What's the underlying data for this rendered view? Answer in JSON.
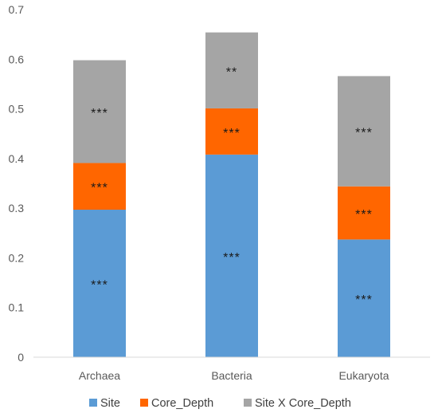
{
  "chart_data": {
    "type": "bar",
    "stacked": true,
    "categories": [
      "Archaea",
      "Bacteria",
      "Eukaryota"
    ],
    "series": [
      {
        "name": "Site",
        "color": "#5b9bd5",
        "values": [
          0.297,
          0.408,
          0.237
        ],
        "annotations": [
          "***",
          "***",
          "***"
        ]
      },
      {
        "name": "Core_Depth",
        "color": "#ff6600",
        "values": [
          0.094,
          0.093,
          0.107
        ],
        "annotations": [
          "***",
          "***",
          "***"
        ]
      },
      {
        "name": "Site X Core_Depth",
        "color": "#a5a5a5",
        "values": [
          0.207,
          0.153,
          0.222
        ],
        "annotations": [
          "***",
          "**",
          "***"
        ]
      }
    ],
    "ylim": [
      0,
      0.7
    ],
    "yticks": [
      "0",
      "0.1",
      "0.2",
      "0.3",
      "0.4",
      "0.5",
      "0.6",
      "0.7"
    ],
    "grid": false,
    "legend_position": "bottom"
  }
}
